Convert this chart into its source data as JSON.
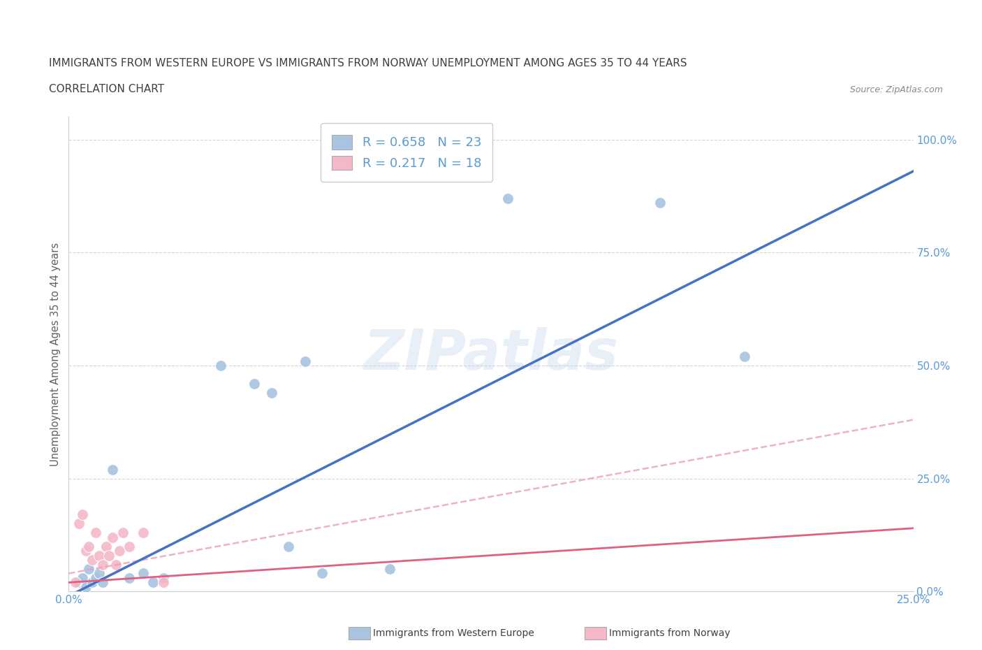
{
  "title_line1": "IMMIGRANTS FROM WESTERN EUROPE VS IMMIGRANTS FROM NORWAY UNEMPLOYMENT AMONG AGES 35 TO 44 YEARS",
  "title_line2": "CORRELATION CHART",
  "source": "Source: ZipAtlas.com",
  "ylabel": "Unemployment Among Ages 35 to 44 years",
  "xlim": [
    0.0,
    0.25
  ],
  "ylim": [
    0.0,
    1.05
  ],
  "x_ticks": [
    0.0,
    0.05,
    0.1,
    0.15,
    0.2,
    0.25
  ],
  "x_tick_labels": [
    "0.0%",
    "",
    "",
    "",
    "",
    "25.0%"
  ],
  "y_ticks": [
    0.0,
    0.25,
    0.5,
    0.75,
    1.0
  ],
  "y_tick_labels": [
    "0.0%",
    "25.0%",
    "50.0%",
    "75.0%",
    "100.0%"
  ],
  "blue_R": 0.658,
  "blue_N": 23,
  "pink_R": 0.217,
  "pink_N": 18,
  "blue_color": "#a8c4e0",
  "pink_color": "#f4b8c8",
  "blue_line_color": "#4472c4",
  "pink_line_color": "#e06080",
  "pink_dashed_color": "#e8a0b8",
  "watermark": "ZIPatlas",
  "blue_scatter_x": [
    0.003,
    0.004,
    0.005,
    0.006,
    0.007,
    0.008,
    0.009,
    0.01,
    0.013,
    0.018,
    0.022,
    0.025,
    0.028,
    0.045,
    0.055,
    0.06,
    0.065,
    0.07,
    0.075,
    0.095,
    0.13,
    0.175,
    0.2
  ],
  "blue_scatter_y": [
    0.02,
    0.03,
    0.01,
    0.05,
    0.02,
    0.03,
    0.04,
    0.02,
    0.27,
    0.03,
    0.04,
    0.02,
    0.03,
    0.5,
    0.46,
    0.44,
    0.1,
    0.51,
    0.04,
    0.05,
    0.87,
    0.86,
    0.52
  ],
  "pink_scatter_x": [
    0.002,
    0.003,
    0.004,
    0.005,
    0.006,
    0.007,
    0.008,
    0.009,
    0.01,
    0.011,
    0.012,
    0.013,
    0.014,
    0.015,
    0.016,
    0.018,
    0.022,
    0.028
  ],
  "pink_scatter_y": [
    0.02,
    0.15,
    0.17,
    0.09,
    0.1,
    0.07,
    0.13,
    0.08,
    0.06,
    0.1,
    0.08,
    0.12,
    0.06,
    0.09,
    0.13,
    0.1,
    0.13,
    0.02
  ],
  "blue_trend_x": [
    0.0,
    0.25
  ],
  "blue_trend_y": [
    -0.01,
    0.93
  ],
  "pink_trend_x": [
    0.0,
    0.25
  ],
  "pink_trend_y": [
    0.02,
    0.14
  ],
  "pink_dash_trend_x": [
    0.0,
    0.25
  ],
  "pink_dash_trend_y": [
    0.04,
    0.38
  ],
  "background_color": "#ffffff",
  "grid_color": "#cccccc",
  "title_color": "#404040",
  "tick_color": "#5b9bd5",
  "ylabel_color": "#606060",
  "legend_text_color": "#5b9bd5"
}
